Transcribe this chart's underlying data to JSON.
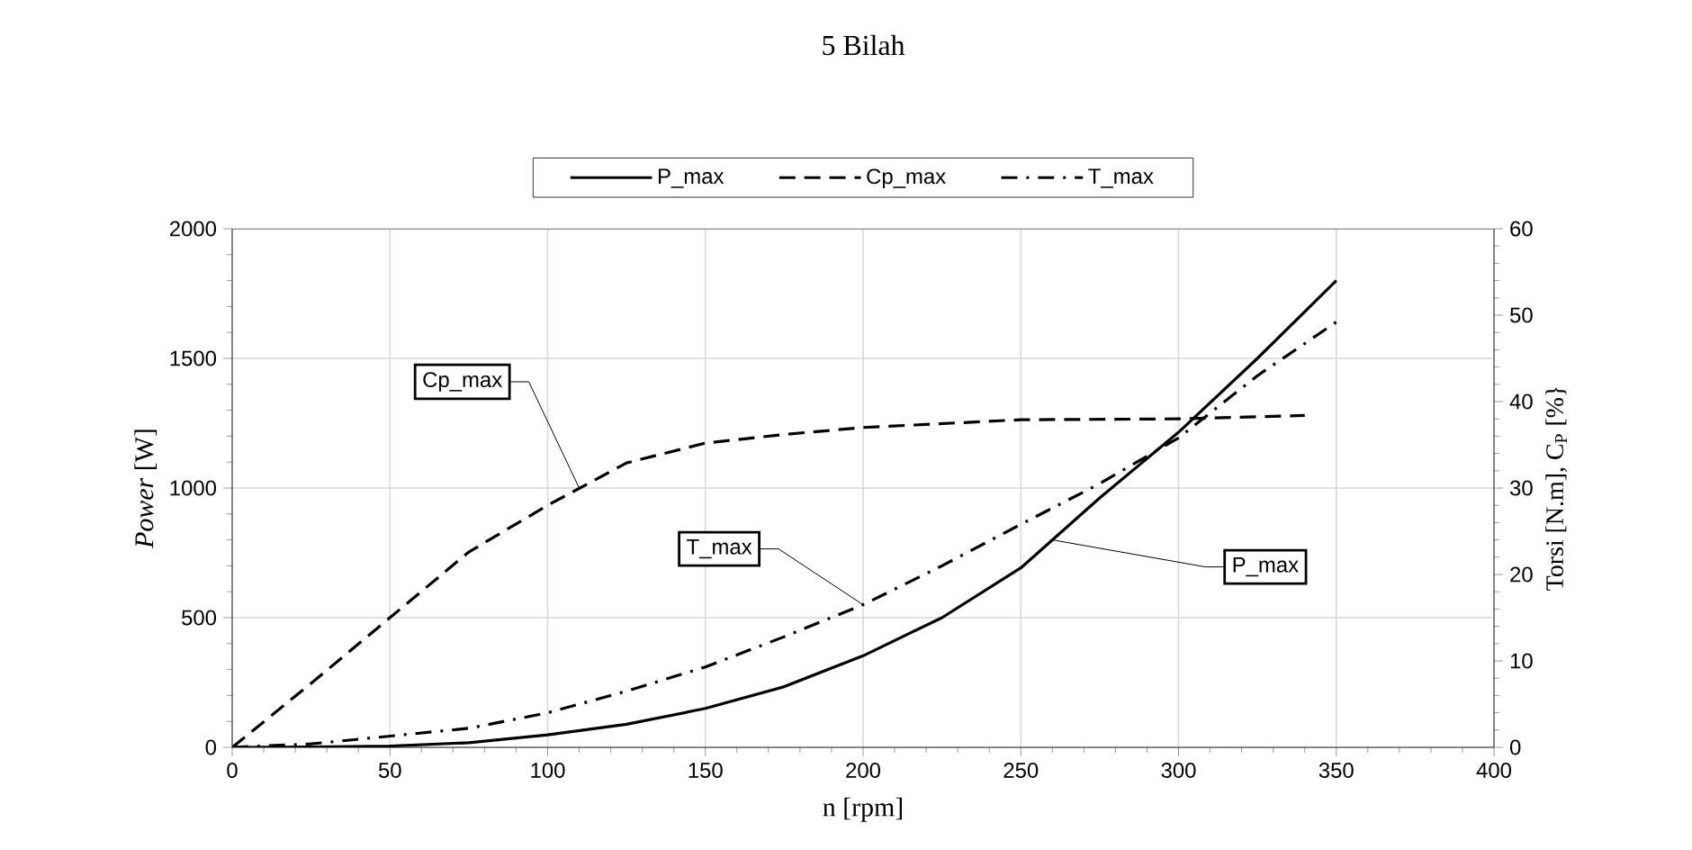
{
  "chart_data": {
    "type": "line",
    "title": "5 Bilah",
    "xlabel": "n [rpm]",
    "ylabel": "*Power* [W]",
    "y2label": "Torsi [N.m], C$_{P}$ [%}",
    "x": [
      0,
      25,
      50,
      75,
      100,
      125,
      150,
      175,
      200,
      225,
      250,
      275,
      300,
      325,
      350
    ],
    "series": [
      {
        "name": "P_max",
        "color": "#000000",
        "line_style": "solid",
        "values": [
          0,
          1,
          5,
          18,
          48,
          89,
          150,
          234,
          353,
          500,
          692,
          962,
          1215,
          1500,
          1800
        ]
      },
      {
        "name": "Cp_max",
        "color": "#000000",
        "line_style": "dashed",
        "axis": "y2",
        "x": [
          0,
          25,
          50,
          75,
          100,
          125,
          150,
          175,
          200,
          250,
          300,
          340
        ],
        "values": [
          0,
          7.4,
          15,
          22.6,
          28,
          32.9,
          35.2,
          36.2,
          37,
          37.9,
          38,
          38.4
        ]
      },
      {
        "name": "T_max",
        "color": "#000000",
        "line_style": "dashdot",
        "axis": "y2",
        "values": [
          0,
          0.4,
          1.3,
          2.2,
          4,
          6.5,
          9.3,
          12.8,
          16.5,
          21,
          25.8,
          30.5,
          35.8,
          43,
          49.2
        ]
      }
    ],
    "xlim": [
      0,
      400
    ],
    "xticks": [
      0,
      50,
      100,
      150,
      200,
      250,
      300,
      350,
      400
    ],
    "ylim": [
      0,
      2000
    ],
    "yticks": [
      0,
      500,
      1000,
      1500,
      2000
    ],
    "y2lim": [
      0,
      60
    ],
    "y2ticks": [
      0,
      10,
      20,
      30,
      40,
      50,
      60
    ],
    "annotations": [
      {
        "text": "Cp_max",
        "x": 110,
        "y": 1000
      },
      {
        "text": "T_max",
        "x": 200,
        "y": 550
      },
      {
        "text": "P_max",
        "x": 260,
        "y": 800
      }
    ],
    "grid": true,
    "legend": "top",
    "marker": "none"
  }
}
